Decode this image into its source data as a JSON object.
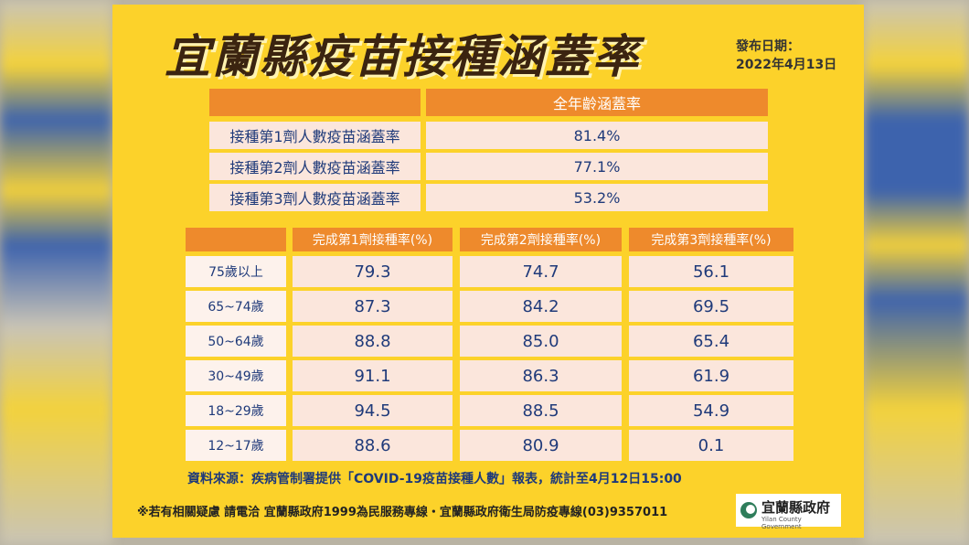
{
  "title": "宜蘭縣疫苗接種涵蓋率",
  "date_label": "發布日期：",
  "date": "2022年4月13日",
  "coverage_table": {
    "header": "全年齡涵蓋率",
    "rows": [
      [
        "接種第1劑人數疫苗涵蓋率",
        "81.4%"
      ],
      [
        "接種第2劑人數疫苗涵蓋率",
        "77.1%"
      ],
      [
        "接種第3劑人數疫苗涵蓋率",
        "53.2%"
      ]
    ]
  },
  "age_table": {
    "header": [
      "完成第1劑接種率(%)",
      "完成第2劑接種率(%)",
      "完成第3劑接種率(%)"
    ],
    "rows": [
      [
        "75歲以上",
        "79.3",
        "74.7",
        "56.1"
      ],
      [
        "65~74歲",
        "87.3",
        "84.2",
        "69.5"
      ],
      [
        "50~64歲",
        "88.8",
        "85.0",
        "65.4"
      ],
      [
        "30~49歲",
        "91.1",
        "86.3",
        "61.9"
      ],
      [
        "18~29歲",
        "94.5",
        "88.5",
        "54.9"
      ],
      [
        "12~17歲",
        "88.6",
        "80.9",
        "0.1"
      ]
    ]
  },
  "source": "資料來源：疾病管制署提供「COVID-19疫苗接種人數」報表，統計至4月12日15:00",
  "footer_note": "※若有相關疑慮 請電洽  宜蘭縣政府1999為民服務專線・宜蘭縣政府衛生局防疫專線(03)9357011",
  "logo": {
    "name": "宜蘭縣政府",
    "english": "Yilan County Government"
  }
}
